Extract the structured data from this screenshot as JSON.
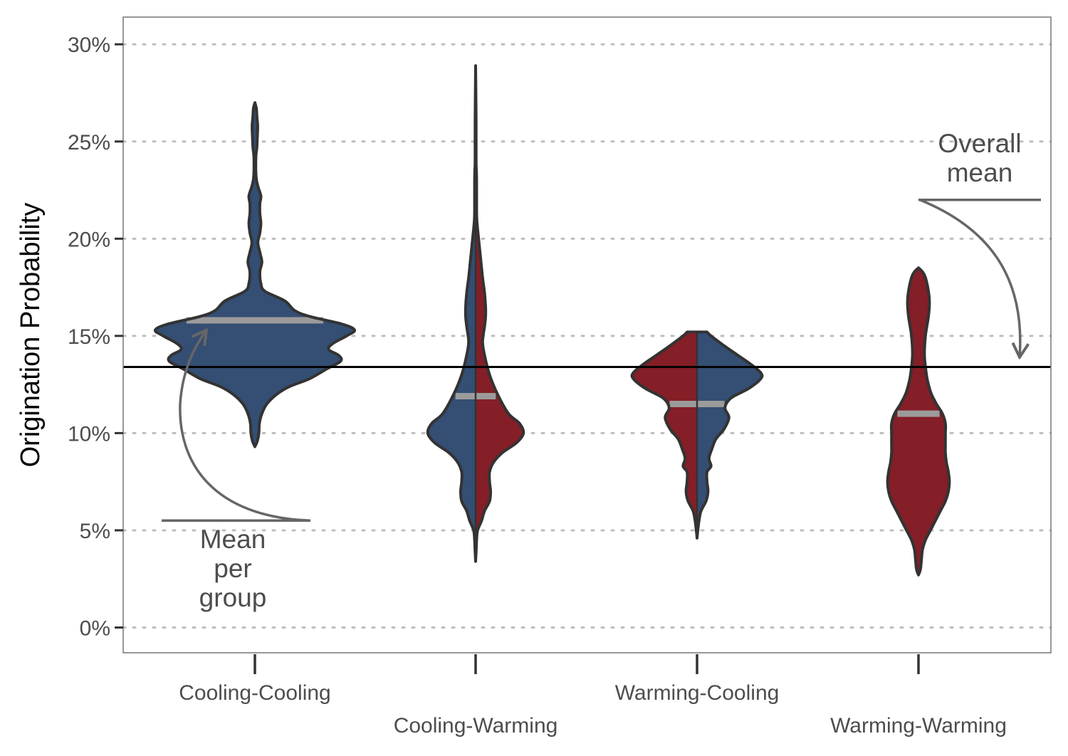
{
  "chart_data": {
    "type": "violin",
    "title": "",
    "xlabel": "",
    "ylabel": "Origination Probability",
    "ylim": [
      -1.3,
      31.4
    ],
    "yticks": [
      0,
      5,
      10,
      15,
      20,
      25,
      30
    ],
    "ytick_labels": [
      "0%",
      "5%",
      "10%",
      "15%",
      "20%",
      "25%",
      "30%"
    ],
    "y_unit": "%",
    "grid": "horizontal dotted",
    "legend": "none",
    "colors": {
      "cooling": "#344e74",
      "warming": "#841e27",
      "mean_line": "#9b9b9b",
      "overall_line": "#000000",
      "arrow": "#666666"
    },
    "overall_mean": 13.4,
    "categories": [
      "Cooling-Cooling",
      "Cooling-Warming",
      "Warming-Cooling",
      "Warming-Warming"
    ],
    "groups": [
      {
        "category": "Cooling-Cooling",
        "left_color": "cooling",
        "right_color": "cooling",
        "mean": 15.8,
        "density": [
          [
            9.3,
            0.0
          ],
          [
            9.6,
            0.025
          ],
          [
            10,
            0.04
          ],
          [
            10.5,
            0.045
          ],
          [
            11,
            0.07
          ],
          [
            11.5,
            0.12
          ],
          [
            12,
            0.22
          ],
          [
            12.4,
            0.35
          ],
          [
            12.8,
            0.55
          ],
          [
            13.3,
            0.72
          ],
          [
            13.7,
            0.86
          ],
          [
            14,
            0.84
          ],
          [
            14.3,
            0.74
          ],
          [
            14.6,
            0.78
          ],
          [
            15,
            0.92
          ],
          [
            15.3,
            1.0
          ],
          [
            15.6,
            0.88
          ],
          [
            16,
            0.55
          ],
          [
            16.3,
            0.4
          ],
          [
            16.8,
            0.3
          ],
          [
            17.3,
            0.1
          ],
          [
            17.7,
            0.06
          ],
          [
            18.3,
            0.05
          ],
          [
            18.8,
            0.07
          ],
          [
            19.3,
            0.05
          ],
          [
            19.8,
            0.03
          ],
          [
            20.3,
            0.05
          ],
          [
            20.8,
            0.06
          ],
          [
            21.3,
            0.05
          ],
          [
            21.8,
            0.05
          ],
          [
            22.2,
            0.06
          ],
          [
            22.7,
            0.03
          ],
          [
            23.2,
            0.012
          ],
          [
            24.2,
            0.01
          ],
          [
            24.7,
            0.02
          ],
          [
            25.3,
            0.025
          ],
          [
            25.8,
            0.028
          ],
          [
            26.3,
            0.02
          ],
          [
            26.7,
            0.015
          ],
          [
            27,
            0.0
          ]
        ]
      },
      {
        "category": "Cooling-Warming",
        "left_color": "cooling",
        "right_color": "warming",
        "mean": 11.9,
        "density": [
          [
            3.4,
            0.0
          ],
          [
            4,
            0.006
          ],
          [
            4.5,
            0.01
          ],
          [
            5,
            0.02
          ],
          [
            5.5,
            0.06
          ],
          [
            6,
            0.09
          ],
          [
            6.5,
            0.14
          ],
          [
            7,
            0.15
          ],
          [
            7.5,
            0.14
          ],
          [
            8,
            0.14
          ],
          [
            8.5,
            0.18
          ],
          [
            9,
            0.27
          ],
          [
            9.5,
            0.41
          ],
          [
            10,
            0.48
          ],
          [
            10.5,
            0.44
          ],
          [
            11,
            0.33
          ],
          [
            12,
            0.22
          ],
          [
            13,
            0.14
          ],
          [
            14,
            0.09
          ],
          [
            14.7,
            0.07
          ],
          [
            15.5,
            0.09
          ],
          [
            16,
            0.1
          ],
          [
            16.5,
            0.1
          ],
          [
            17.2,
            0.09
          ],
          [
            18,
            0.07
          ],
          [
            19,
            0.05
          ],
          [
            20,
            0.03
          ],
          [
            21,
            0.012
          ],
          [
            22,
            0.01
          ],
          [
            23,
            0.01
          ],
          [
            23.5,
            0.008
          ],
          [
            24,
            0.005
          ],
          [
            26,
            0.005
          ],
          [
            28.9,
            0.0
          ]
        ]
      },
      {
        "category": "Warming-Cooling",
        "left_color": "warming",
        "right_color": "cooling",
        "mean": 11.5,
        "density": [
          [
            4.6,
            0.0
          ],
          [
            5,
            0.008
          ],
          [
            5.5,
            0.02
          ],
          [
            6,
            0.04
          ],
          [
            6.5,
            0.09
          ],
          [
            7,
            0.11
          ],
          [
            7.5,
            0.1
          ],
          [
            8,
            0.1
          ],
          [
            8.3,
            0.14
          ],
          [
            8.7,
            0.12
          ],
          [
            9.2,
            0.15
          ],
          [
            9.7,
            0.19
          ],
          [
            10.2,
            0.27
          ],
          [
            10.8,
            0.32
          ],
          [
            11.3,
            0.28
          ],
          [
            11.8,
            0.34
          ],
          [
            12.3,
            0.52
          ],
          [
            12.8,
            0.64
          ],
          [
            13.1,
            0.64
          ],
          [
            13.5,
            0.55
          ],
          [
            14,
            0.41
          ],
          [
            14.5,
            0.27
          ],
          [
            15,
            0.14
          ],
          [
            15.2,
            0.1
          ]
        ]
      },
      {
        "category": "Warming-Warming",
        "left_color": "warming",
        "right_color": "warming",
        "mean": 11.0,
        "density": [
          [
            2.7,
            0.0
          ],
          [
            3,
            0.02
          ],
          [
            3.5,
            0.03
          ],
          [
            4,
            0.04
          ],
          [
            4.5,
            0.07
          ],
          [
            5,
            0.12
          ],
          [
            5.5,
            0.17
          ],
          [
            6,
            0.22
          ],
          [
            6.5,
            0.27
          ],
          [
            7,
            0.3
          ],
          [
            7.5,
            0.31
          ],
          [
            8,
            0.3
          ],
          [
            8.5,
            0.28
          ],
          [
            9,
            0.27
          ],
          [
            9.5,
            0.27
          ],
          [
            10,
            0.27
          ],
          [
            10.5,
            0.27
          ],
          [
            11,
            0.24
          ],
          [
            11.5,
            0.18
          ],
          [
            12,
            0.13
          ],
          [
            12.5,
            0.1
          ],
          [
            13,
            0.08
          ],
          [
            14,
            0.06
          ],
          [
            15,
            0.07
          ],
          [
            16,
            0.1
          ],
          [
            16.7,
            0.11
          ],
          [
            17.3,
            0.1
          ],
          [
            18,
            0.07
          ],
          [
            18.3,
            0.04
          ],
          [
            18.5,
            0.0
          ]
        ]
      }
    ],
    "annotations": [
      {
        "id": "mean-per-group",
        "lines": [
          "Mean",
          "per",
          "group"
        ]
      },
      {
        "id": "overall-mean",
        "lines": [
          "Overall",
          "mean"
        ]
      }
    ]
  }
}
